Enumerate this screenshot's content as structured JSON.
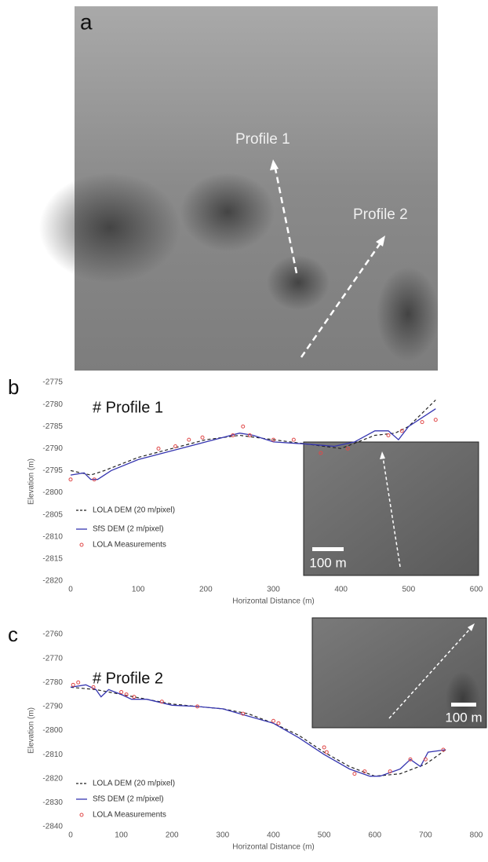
{
  "panel_a": {
    "label": "a",
    "annotations": [
      "Profile 1",
      "Profile 2"
    ]
  },
  "chart_data": [
    {
      "type": "line",
      "panel_label": "b",
      "title": "# Profile 1",
      "x_label": "Horizontal Distance (m)",
      "y_label": "Elevation (m)",
      "inset_scale": "100 m",
      "xlim": [
        0,
        600
      ],
      "xticks": [
        0,
        100,
        200,
        300,
        400,
        500,
        600
      ],
      "ylim": [
        -2820,
        -2775
      ],
      "yticks": [
        -2775,
        -2780,
        -2785,
        -2790,
        -2795,
        -2800,
        -2805,
        -2810,
        -2815,
        -2820
      ],
      "grid": false,
      "legend": "lower left",
      "series": [
        {
          "name": "LOLA DEM (20 m/pixel)",
          "color": "#222222",
          "style": "dashed",
          "x": [
            0,
            30,
            50,
            100,
            150,
            200,
            250,
            300,
            350,
            400,
            450,
            480,
            500,
            540
          ],
          "values": [
            -2795,
            -2796,
            -2795,
            -2792,
            -2790,
            -2788,
            -2787,
            -2788,
            -2789,
            -2790,
            -2787,
            -2786.5,
            -2785,
            -2779
          ]
        },
        {
          "name": "SfS DEM (2 m/pixel)",
          "color": "#3535b0",
          "style": "solid",
          "x": [
            0,
            20,
            30,
            40,
            60,
            100,
            150,
            200,
            250,
            270,
            300,
            350,
            390,
            420,
            450,
            470,
            485,
            500,
            540
          ],
          "values": [
            -2796,
            -2795.5,
            -2797,
            -2797,
            -2795,
            -2792.5,
            -2790.5,
            -2788.5,
            -2786.5,
            -2787,
            -2788.5,
            -2789,
            -2789.5,
            -2788.5,
            -2786,
            -2786,
            -2788,
            -2785,
            -2781
          ]
        },
        {
          "name": "LOLA Measurements",
          "color": "#e04848",
          "style": "markers",
          "x": [
            0,
            35,
            130,
            155,
            175,
            195,
            240,
            255,
            265,
            300,
            330,
            370,
            410,
            470,
            490,
            520,
            540
          ],
          "values": [
            -2797,
            -2797,
            -2790,
            -2789.5,
            -2788,
            -2787.5,
            -2787,
            -2785,
            -2787,
            -2788,
            -2788,
            -2791,
            -2790,
            -2787,
            -2786,
            -2784,
            -2783.5
          ]
        }
      ]
    },
    {
      "type": "line",
      "panel_label": "c",
      "title": "# Profile 2",
      "x_label": "Horizontal Distance (m)",
      "y_label": "Elevation (m)",
      "inset_scale": "100 m",
      "xlim": [
        0,
        800
      ],
      "xticks": [
        0,
        100,
        200,
        300,
        400,
        500,
        600,
        700,
        800
      ],
      "ylim": [
        -2840,
        -2760
      ],
      "yticks": [
        -2760,
        -2770,
        -2780,
        -2790,
        -2800,
        -2810,
        -2820,
        -2830,
        -2840
      ],
      "grid": false,
      "legend": "lower left",
      "series": [
        {
          "name": "LOLA DEM (20 m/pixel)",
          "color": "#222222",
          "style": "dashed",
          "x": [
            0,
            50,
            100,
            150,
            200,
            250,
            300,
            350,
            400,
            450,
            500,
            550,
            600,
            650,
            700,
            740
          ],
          "values": [
            -2782,
            -2783,
            -2785,
            -2787,
            -2789,
            -2790,
            -2791,
            -2793,
            -2797,
            -2802,
            -2809,
            -2815,
            -2819,
            -2818,
            -2814,
            -2808
          ]
        },
        {
          "name": "SfS DEM (2 m/pixel)",
          "color": "#3535b0",
          "style": "solid",
          "x": [
            0,
            30,
            50,
            60,
            75,
            100,
            120,
            150,
            200,
            250,
            300,
            350,
            400,
            450,
            500,
            550,
            590,
            610,
            650,
            670,
            690,
            705,
            740
          ],
          "values": [
            -2782,
            -2781,
            -2783,
            -2786,
            -2783,
            -2785,
            -2787,
            -2787,
            -2789.5,
            -2790,
            -2791,
            -2794,
            -2797,
            -2803,
            -2810,
            -2816,
            -2819,
            -2819,
            -2816,
            -2812,
            -2815,
            -2809,
            -2808
          ]
        },
        {
          "name": "LOLA Measurements",
          "color": "#e04848",
          "style": "markers",
          "x": [
            5,
            15,
            45,
            100,
            110,
            125,
            180,
            250,
            340,
            400,
            410,
            500,
            505,
            560,
            580,
            630,
            670,
            700,
            735
          ],
          "values": [
            -2781,
            -2780,
            -2782,
            -2784,
            -2785,
            -2786,
            -2788,
            -2790,
            -2793,
            -2796,
            -2797,
            -2807,
            -2809,
            -2818,
            -2817,
            -2817,
            -2812,
            -2812,
            -2808
          ]
        }
      ]
    }
  ]
}
